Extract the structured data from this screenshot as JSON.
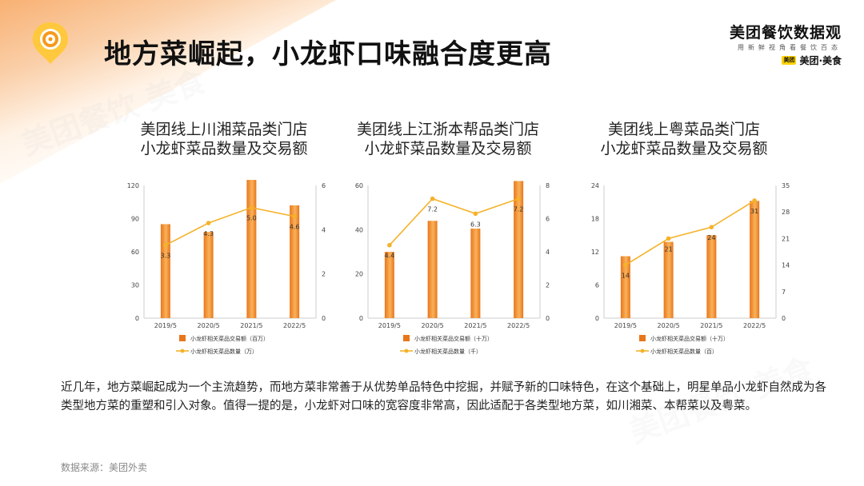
{
  "page": {
    "title": "地方菜崛起，小龙虾口味融合度更高",
    "body_text": "近几年，地方菜崛起成为一个主流趋势，而地方菜非常善于从优势单品特色中挖掘，并赋予新的口味特色，在这个基础上，明星单品小龙虾自然成为各类型地方菜的重塑和引入对象。值得一提的是，小龙虾对口味的宽容度非常高，因此适配于各类型地方菜，如川湘菜、本帮菜以及粤菜。",
    "source": "数据来源：美团外卖"
  },
  "brand": {
    "name": "美团餐饮数据观",
    "slogan": "用新鲜视角看餐饮百态",
    "badge": "美团",
    "sub": "美团·美食",
    "watermark": "美团餐饮 美食"
  },
  "colors": {
    "bar_dark": "#e8761c",
    "bar_light": "#f9b25a",
    "line": "#f5b22a",
    "axis": "#cccccc",
    "tick": "#444444"
  },
  "chart_data": [
    {
      "type": "bar+line",
      "title_line1": "美团线上川湘菜品类门店",
      "title_line2": "小龙虾菜品数量及交易额",
      "categories": [
        "2019/5",
        "2020/5",
        "2021/5",
        "2022/5"
      ],
      "left_ticks": [
        "0",
        "30",
        "60",
        "90",
        "120"
      ],
      "right_ticks": [
        "0",
        "2",
        "4",
        "6"
      ],
      "ylim_left": [
        0,
        120
      ],
      "ylim_right": [
        0,
        6
      ],
      "bar_series": {
        "name": "小龙虾相关菜品交易额（百万）",
        "values": [
          85,
          78,
          125,
          102
        ]
      },
      "line_series": {
        "name": "小龙虾相关菜品数量（万）",
        "values": [
          3.3,
          4.3,
          5.0,
          4.6
        ],
        "labels": [
          "3.3",
          "4.3",
          "5.0",
          "4.6"
        ]
      }
    },
    {
      "type": "bar+line",
      "title_line1": "美团线上江浙本帮品类门店",
      "title_line2": "小龙虾菜品数量及交易额",
      "categories": [
        "2019/5",
        "2020/5",
        "2021/5",
        "2022/5"
      ],
      "left_ticks": [
        "0",
        "20",
        "40",
        "60"
      ],
      "right_ticks": [
        "0",
        "2",
        "4",
        "6",
        "8"
      ],
      "ylim_left": [
        0,
        60
      ],
      "ylim_right": [
        0,
        8
      ],
      "bar_series": {
        "name": "小龙虾相关菜品交易额（十万）",
        "values": [
          30,
          44,
          40.5,
          62
        ]
      },
      "line_series": {
        "name": "小龙虾相关菜品数量（千）",
        "values": [
          4.4,
          7.2,
          6.3,
          7.2
        ],
        "labels": [
          "4.4",
          "7.2",
          "6.3",
          "7.2"
        ]
      }
    },
    {
      "type": "bar+line",
      "title_line1": "美团线上粤菜品类门店",
      "title_line2": "小龙虾菜品数量及交易额",
      "categories": [
        "2019/5",
        "2020/5",
        "2021/5",
        "2022/5"
      ],
      "left_ticks": [
        "0",
        "6",
        "12",
        "18",
        "24"
      ],
      "right_ticks": [
        "0",
        "7",
        "14",
        "21",
        "28",
        "35"
      ],
      "ylim_left": [
        0,
        24
      ],
      "ylim_right": [
        0,
        35
      ],
      "bar_series": {
        "name": "小龙虾相关菜品交易额（十万）",
        "values": [
          11.2,
          13.8,
          15,
          21.2
        ]
      },
      "line_series": {
        "name": "小龙虾相关菜品数量（百）",
        "values": [
          14,
          21,
          24,
          31
        ],
        "labels": [
          "14",
          "21",
          "24",
          "31"
        ]
      }
    }
  ]
}
